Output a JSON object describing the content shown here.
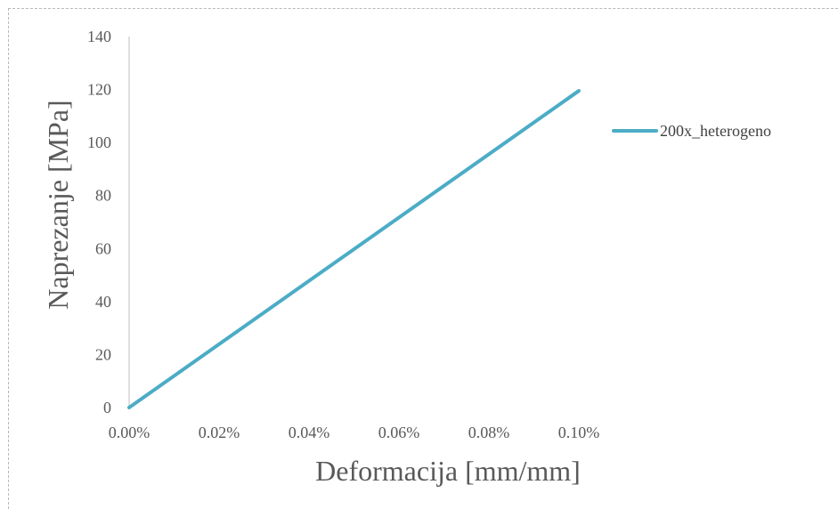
{
  "chart_data": {
    "type": "line",
    "title": "",
    "xlabel": "Deformacija [mm/mm]",
    "ylabel": "Naprezanje [MPa]",
    "xlim": [
      0,
      0.001
    ],
    "ylim": [
      0,
      140
    ],
    "x_ticks": [
      "0.00%",
      "0.02%",
      "0.04%",
      "0.06%",
      "0.08%",
      "0.10%"
    ],
    "y_ticks": [
      "0",
      "20",
      "40",
      "60",
      "80",
      "100",
      "120",
      "140"
    ],
    "grid": false,
    "legend_position": "right",
    "series": [
      {
        "name": "200x_heterogeno",
        "color": "#4BACC6",
        "x": [
          0,
          0.001
        ],
        "y": [
          0,
          119.5
        ]
      }
    ]
  }
}
